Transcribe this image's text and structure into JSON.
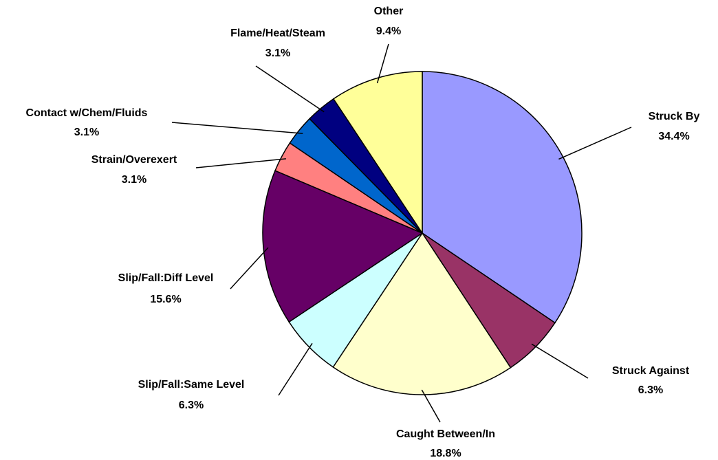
{
  "chart_data": {
    "type": "pie",
    "categories": [
      "Struck By",
      "Struck Against",
      "Caught Between/In",
      "Slip/Fall:Same Level",
      "Slip/Fall:Diff Level",
      "Strain/Overexert",
      "Contact w/Chem/Fluids",
      "Flame/Heat/Steam",
      "Other"
    ],
    "values": [
      34.4,
      6.3,
      18.8,
      6.3,
      15.6,
      3.1,
      3.1,
      3.1,
      9.4
    ],
    "value_labels": [
      "34.4%",
      "6.3%",
      "18.8%",
      "6.3%",
      "15.6%",
      "3.1%",
      "3.1%",
      "3.1%",
      "9.4%"
    ],
    "colors": [
      "#9999ff",
      "#993366",
      "#ffffcc",
      "#ccffff",
      "#660066",
      "#ff8080",
      "#0066cc",
      "#000080",
      "#ffff99"
    ]
  }
}
